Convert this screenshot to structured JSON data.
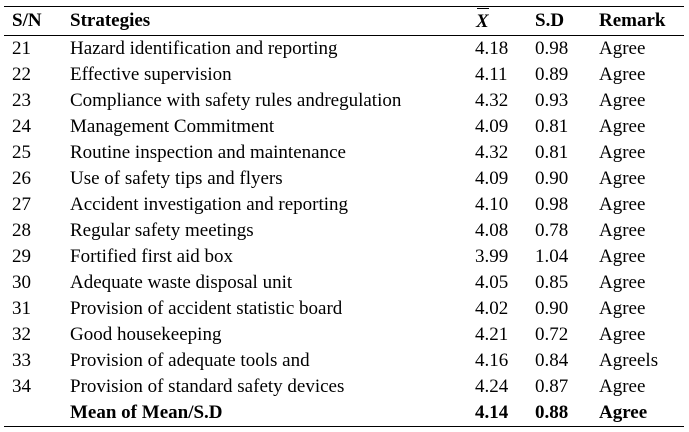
{
  "table": {
    "headers": {
      "sn": "S/N",
      "strategies": "Strategies",
      "mean": "X",
      "sd": "S.D",
      "remark": "Remark"
    },
    "rows": [
      {
        "sn": "21",
        "strategy": "Hazard identification and reporting",
        "mean": "4.18",
        "sd": "0.98",
        "remark": "Agree"
      },
      {
        "sn": "22",
        "strategy": "Effective supervision",
        "mean": "4.11",
        "sd": "0.89",
        "remark": "Agree"
      },
      {
        "sn": "23",
        "strategy": "Compliance with safety rules andregulation",
        "mean": "4.32",
        "sd": "0.93",
        "remark": "Agree"
      },
      {
        "sn": "24",
        "strategy": "Management Commitment",
        "mean": "4.09",
        "sd": "0.81",
        "remark": "Agree"
      },
      {
        "sn": "25",
        "strategy": "Routine inspection and maintenance",
        "mean": "4.32",
        "sd": "0.81",
        "remark": "Agree"
      },
      {
        "sn": "26",
        "strategy": "Use of safety tips and flyers",
        "mean": "4.09",
        "sd": "0.90",
        "remark": "Agree"
      },
      {
        "sn": "27",
        "strategy": "Accident investigation and reporting",
        "mean": "4.10",
        "sd": "0.98",
        "remark": "Agree"
      },
      {
        "sn": "28",
        "strategy": "Regular safety meetings",
        "mean": "4.08",
        "sd": "0.78",
        "remark": "Agree"
      },
      {
        "sn": "29",
        "strategy": "Fortified first aid box",
        "mean": "3.99",
        "sd": "1.04",
        "remark": "Agree"
      },
      {
        "sn": "30",
        "strategy": "Adequate waste disposal unit",
        "mean": "4.05",
        "sd": "0.85",
        "remark": "Agree"
      },
      {
        "sn": "31",
        "strategy": "Provision of accident statistic board",
        "mean": "4.02",
        "sd": "0.90",
        "remark": "Agree"
      },
      {
        "sn": "32",
        "strategy": "Good housekeeping",
        "mean": "4.21",
        "sd": "0.72",
        "remark": "Agree"
      },
      {
        "sn": "33",
        "strategy": "Provision of adequate tools and",
        "mean": "4.16",
        "sd": "0.84",
        "remark": "Agreels"
      },
      {
        "sn": "34",
        "strategy": "Provision of standard safety devices",
        "mean": "4.24",
        "sd": "0.87",
        "remark": "Agree"
      }
    ],
    "summary": {
      "label": "Mean of Mean/S.D",
      "mean": "4.14",
      "sd": "0.88",
      "remark": "Agree"
    }
  }
}
